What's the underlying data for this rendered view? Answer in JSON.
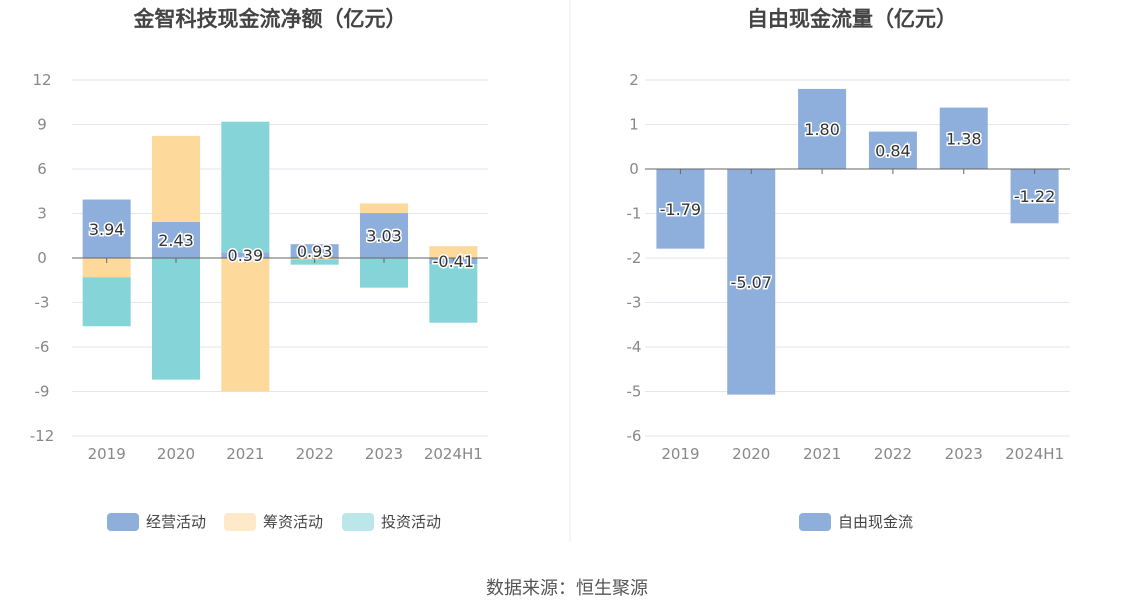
{
  "colors": {
    "operating": "#8eaedb",
    "financing": "#fdd99b",
    "investing": "#84d4d8",
    "free_cash_flow": "#8eaedb",
    "grid": "#e3e6ee",
    "axis_text": "#888888",
    "title": "#444444"
  },
  "source": "数据来源：恒生聚源",
  "chart_data": [
    {
      "type": "bar",
      "stacked": true,
      "title": "金智科技现金流净额（亿元）",
      "categories": [
        "2019",
        "2020",
        "2021",
        "2022",
        "2023",
        "2024H1"
      ],
      "ylim": [
        -12,
        12
      ],
      "yticks": [
        12,
        9,
        6,
        3,
        0,
        -3,
        -6,
        -9,
        -12
      ],
      "grid": true,
      "legend_position": "bottom",
      "series": [
        {
          "name": "经营活动",
          "color_key": "operating",
          "values": [
            3.94,
            2.43,
            0.39,
            0.93,
            3.03,
            -0.41
          ]
        },
        {
          "name": "筹资活动",
          "color_key": "financing",
          "values": [
            -1.3,
            5.8,
            -9.0,
            -0.1,
            0.65,
            0.8
          ]
        },
        {
          "name": "投资活动",
          "color_key": "investing",
          "values": [
            -3.3,
            -8.2,
            8.8,
            -0.35,
            -2.0,
            -3.95
          ]
        }
      ],
      "data_labels": [
        "3.94",
        "2.43",
        "0.39",
        "0.93",
        "3.03",
        "-0.41"
      ]
    },
    {
      "type": "bar",
      "title": "自由现金流量（亿元）",
      "categories": [
        "2019",
        "2020",
        "2021",
        "2022",
        "2023",
        "2024H1"
      ],
      "ylim": [
        -6,
        2
      ],
      "yticks": [
        2,
        1,
        0,
        -1,
        -2,
        -3,
        -4,
        -5,
        -6
      ],
      "grid": true,
      "legend_position": "bottom",
      "series": [
        {
          "name": "自由现金流",
          "color_key": "free_cash_flow",
          "values": [
            -1.79,
            -5.07,
            1.8,
            0.84,
            1.38,
            -1.22
          ]
        }
      ],
      "data_labels": [
        "-1.79",
        "-5.07",
        "1.80",
        "0.84",
        "1.38",
        "-1.22"
      ]
    }
  ]
}
